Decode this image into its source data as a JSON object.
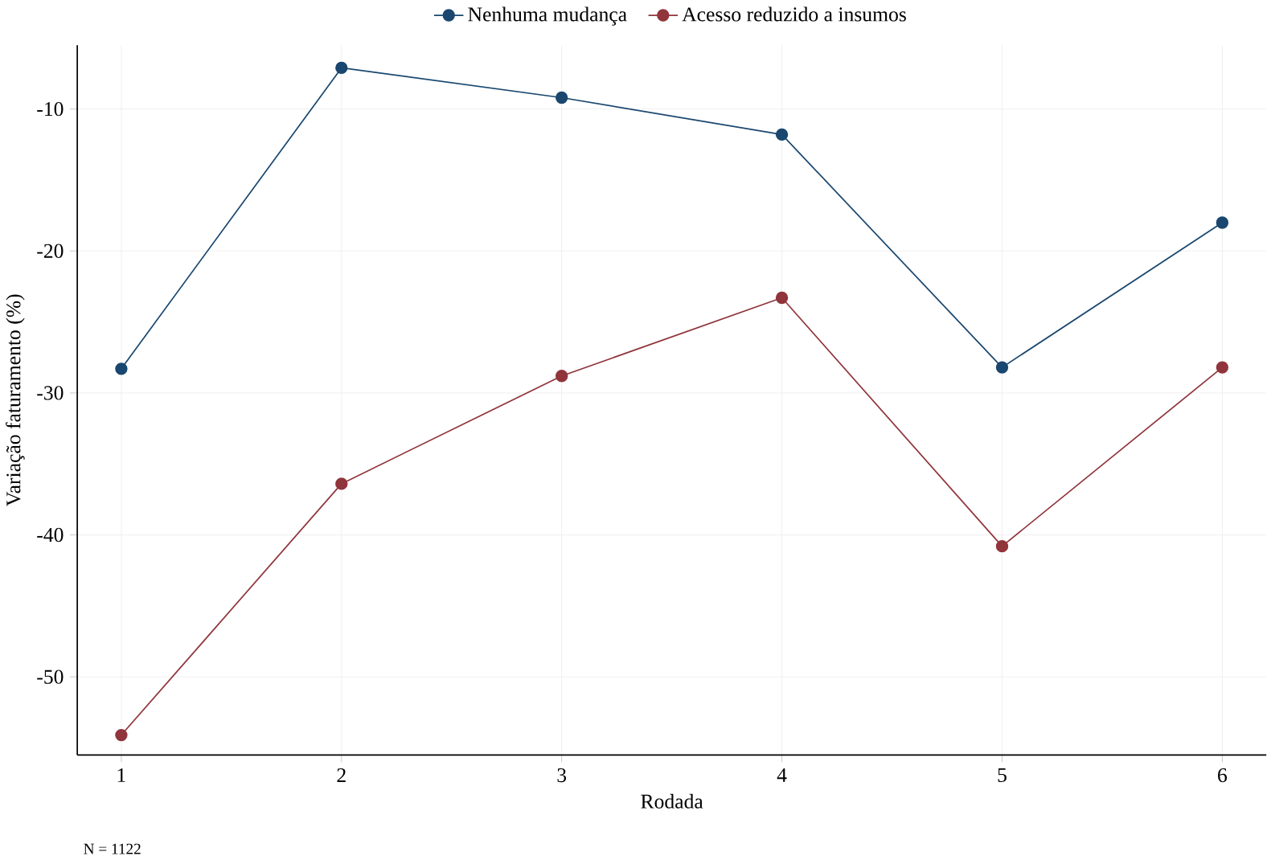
{
  "chart_data": {
    "type": "line",
    "xlabel": "Rodada",
    "ylabel": "Variação faturamento (%)",
    "x": [
      1,
      2,
      3,
      4,
      5,
      6
    ],
    "series": [
      {
        "name": "Nenhuma mudança",
        "color": "#1a476f",
        "values": [
          -28.3,
          -7.1,
          -9.2,
          -11.8,
          -28.2,
          -18.0
        ]
      },
      {
        "name": "Acesso reduzido a insumos",
        "color": "#90353b",
        "values": [
          -54.1,
          -36.4,
          -28.8,
          -23.3,
          -40.8,
          -28.2
        ]
      }
    ],
    "xlim": [
      0.8,
      6.2
    ],
    "ylim": [
      -55.5,
      -5.5
    ],
    "xticks": [
      1,
      2,
      3,
      4,
      5,
      6
    ],
    "yticks": [
      -50,
      -40,
      -30,
      -20,
      -10
    ],
    "grid": true,
    "legend": "top",
    "marker": "circle",
    "line_style": "solid",
    "annotations": [
      "N = 1122"
    ]
  }
}
